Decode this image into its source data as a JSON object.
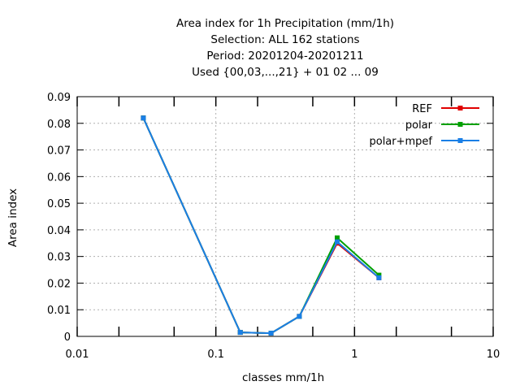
{
  "chart_data": {
    "type": "line",
    "title": [
      "Area index  for 1h Precipitation (mm/1h)",
      "Selection: ALL    162 stations",
      "Period: 20201204-20201211",
      "Used {00,03,...,21} + 01 02 ... 09"
    ],
    "xlabel": "classes mm/1h",
    "ylabel": "Area index",
    "x_scale": "log",
    "xlim": [
      0.01,
      10
    ],
    "ylim": [
      0,
      0.09
    ],
    "x_ticks": [
      0.01,
      0.1,
      1,
      10
    ],
    "x_tick_labels": [
      "0.01",
      "0.1",
      "1",
      "10"
    ],
    "y_ticks": [
      0,
      0.01,
      0.02,
      0.03,
      0.04,
      0.05,
      0.06,
      0.07,
      0.08,
      0.09
    ],
    "y_tick_labels": [
      "0",
      "0.01",
      "0.02",
      "0.03",
      "0.04",
      "0.05",
      "0.06",
      "0.07",
      "0.08",
      "0.09"
    ],
    "grid": true,
    "legend_position": "top-right",
    "x": [
      0.03,
      0.15,
      0.25,
      0.4,
      0.75,
      1.5
    ],
    "series": [
      {
        "name": "REF",
        "color": "#e00000",
        "values": [
          0.082,
          0.0015,
          0.0012,
          0.0075,
          0.035,
          0.022
        ]
      },
      {
        "name": "polar",
        "color": "#00a000",
        "values": [
          0.082,
          0.0015,
          0.0012,
          0.0075,
          0.037,
          0.023
        ]
      },
      {
        "name": "polar+mpef",
        "color": "#1a7fe6",
        "values": [
          0.082,
          0.0015,
          0.0012,
          0.0075,
          0.0355,
          0.022
        ]
      }
    ]
  }
}
